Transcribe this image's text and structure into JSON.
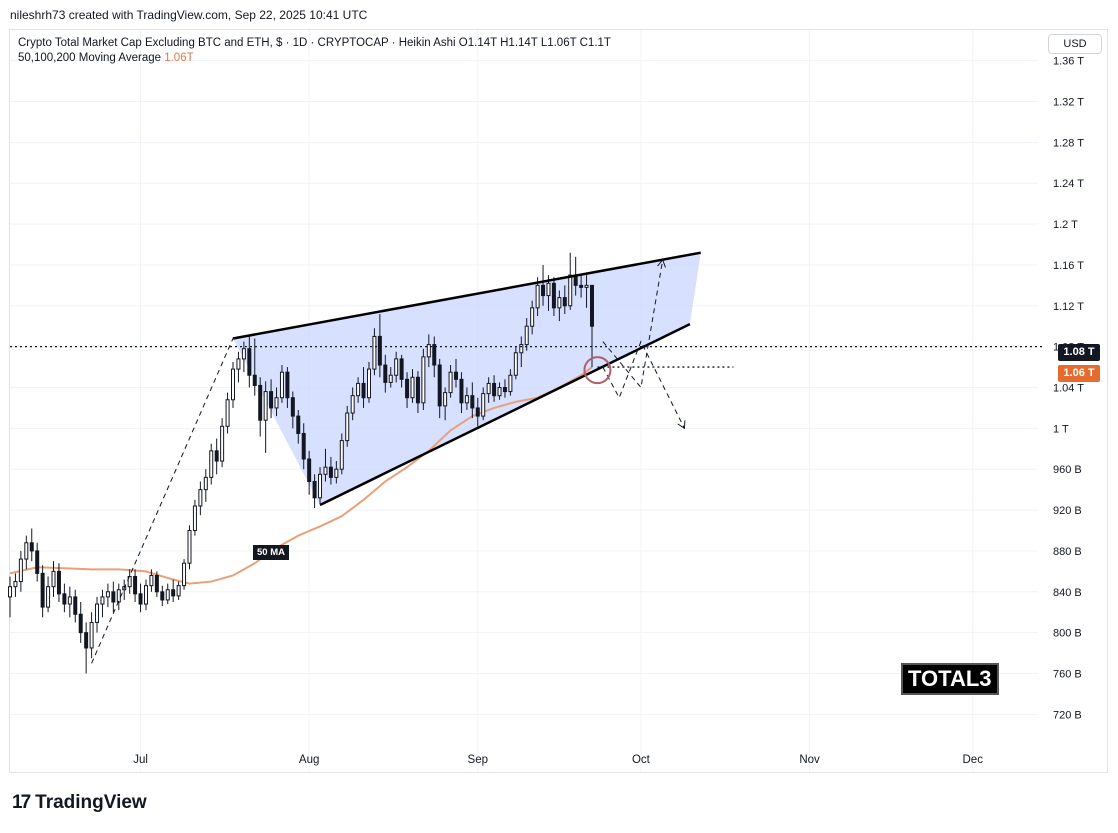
{
  "header": {
    "attribution": "nileshrh73 created with TradingView.com, Sep 22, 2025 10:41 UTC"
  },
  "legend": {
    "line1": "Crypto Total Market Cap Excluding BTC and ETH, $ · 1D · CRYPTOCAP · Heikin Ashi  O1.14T  H1.14T  L1.06T  C1.1T",
    "line2_label": "50,100,200 Moving Average",
    "line2_value": "1.06T"
  },
  "currency_button": "USD",
  "price_tags": {
    "last": "1.08 T",
    "ma": "1.06 T"
  },
  "ma_label": "50 MA",
  "ticker_label": "TOTAL3",
  "footer": {
    "brand": "TradingView",
    "mark": "17"
  },
  "colors": {
    "up": "#131722",
    "down": "#131722",
    "ma": "#e8a07a",
    "wedge_fill": "#c9d6ff",
    "price_line": "#131722"
  },
  "chart_data": {
    "type": "candlestick",
    "title": "Crypto Total Market Cap Excluding BTC and ETH",
    "y_unit": "USD",
    "ylim": [
      0.69,
      1.39
    ],
    "y_ticks": [
      "1.36 T",
      "1.32 T",
      "1.28 T",
      "1.24 T",
      "1.2 T",
      "1.16 T",
      "1.12 T",
      "1.08 T",
      "1.04 T",
      "1 T",
      "960 B",
      "920 B",
      "880 B",
      "840 B",
      "800 B",
      "760 B",
      "720 B"
    ],
    "y_tick_values": [
      1.36,
      1.32,
      1.28,
      1.24,
      1.2,
      1.16,
      1.12,
      1.08,
      1.04,
      1.0,
      0.96,
      0.92,
      0.88,
      0.84,
      0.8,
      0.76,
      0.72
    ],
    "x_ticks": [
      "Jul",
      "Aug",
      "Sep",
      "Oct",
      "Nov",
      "Dec"
    ],
    "x_tick_dates": [
      "2025-07-01",
      "2025-08-01",
      "2025-09-01",
      "2025-10-01",
      "2025-11-01",
      "2025-12-01"
    ],
    "x_range": [
      "2025-06-07",
      "2025-12-13"
    ],
    "last_price": 1.08,
    "ma50_last": 1.06,
    "candles": [
      {
        "d": "2025-06-07",
        "o": 0.835,
        "h": 0.855,
        "l": 0.815,
        "c": 0.845
      },
      {
        "d": "2025-06-08",
        "o": 0.845,
        "h": 0.858,
        "l": 0.835,
        "c": 0.85
      },
      {
        "d": "2025-06-09",
        "o": 0.85,
        "h": 0.88,
        "l": 0.84,
        "c": 0.872
      },
      {
        "d": "2025-06-10",
        "o": 0.872,
        "h": 0.895,
        "l": 0.862,
        "c": 0.888
      },
      {
        "d": "2025-06-11",
        "o": 0.888,
        "h": 0.902,
        "l": 0.87,
        "c": 0.88
      },
      {
        "d": "2025-06-12",
        "o": 0.88,
        "h": 0.888,
        "l": 0.85,
        "c": 0.858
      },
      {
        "d": "2025-06-13",
        "o": 0.858,
        "h": 0.866,
        "l": 0.815,
        "c": 0.825
      },
      {
        "d": "2025-06-14",
        "o": 0.825,
        "h": 0.855,
        "l": 0.82,
        "c": 0.845
      },
      {
        "d": "2025-06-15",
        "o": 0.845,
        "h": 0.87,
        "l": 0.835,
        "c": 0.86
      },
      {
        "d": "2025-06-16",
        "o": 0.86,
        "h": 0.868,
        "l": 0.83,
        "c": 0.838
      },
      {
        "d": "2025-06-17",
        "o": 0.838,
        "h": 0.848,
        "l": 0.82,
        "c": 0.828
      },
      {
        "d": "2025-06-18",
        "o": 0.828,
        "h": 0.845,
        "l": 0.815,
        "c": 0.835
      },
      {
        "d": "2025-06-19",
        "o": 0.835,
        "h": 0.842,
        "l": 0.81,
        "c": 0.818
      },
      {
        "d": "2025-06-20",
        "o": 0.818,
        "h": 0.83,
        "l": 0.79,
        "c": 0.8
      },
      {
        "d": "2025-06-21",
        "o": 0.8,
        "h": 0.81,
        "l": 0.76,
        "c": 0.785
      },
      {
        "d": "2025-06-22",
        "o": 0.785,
        "h": 0.82,
        "l": 0.775,
        "c": 0.81
      },
      {
        "d": "2025-06-23",
        "o": 0.81,
        "h": 0.835,
        "l": 0.8,
        "c": 0.828
      },
      {
        "d": "2025-06-24",
        "o": 0.828,
        "h": 0.842,
        "l": 0.815,
        "c": 0.835
      },
      {
        "d": "2025-06-25",
        "o": 0.835,
        "h": 0.848,
        "l": 0.825,
        "c": 0.84
      },
      {
        "d": "2025-06-26",
        "o": 0.84,
        "h": 0.85,
        "l": 0.82,
        "c": 0.83
      },
      {
        "d": "2025-06-27",
        "o": 0.83,
        "h": 0.848,
        "l": 0.822,
        "c": 0.842
      },
      {
        "d": "2025-06-28",
        "o": 0.842,
        "h": 0.852,
        "l": 0.832,
        "c": 0.845
      },
      {
        "d": "2025-06-29",
        "o": 0.845,
        "h": 0.862,
        "l": 0.838,
        "c": 0.855
      },
      {
        "d": "2025-06-30",
        "o": 0.855,
        "h": 0.862,
        "l": 0.83,
        "c": 0.838
      },
      {
        "d": "2025-07-01",
        "o": 0.838,
        "h": 0.848,
        "l": 0.82,
        "c": 0.828
      },
      {
        "d": "2025-07-02",
        "o": 0.828,
        "h": 0.852,
        "l": 0.822,
        "c": 0.846
      },
      {
        "d": "2025-07-03",
        "o": 0.846,
        "h": 0.862,
        "l": 0.84,
        "c": 0.856
      },
      {
        "d": "2025-07-04",
        "o": 0.856,
        "h": 0.86,
        "l": 0.835,
        "c": 0.84
      },
      {
        "d": "2025-07-05",
        "o": 0.84,
        "h": 0.846,
        "l": 0.826,
        "c": 0.832
      },
      {
        "d": "2025-07-06",
        "o": 0.832,
        "h": 0.848,
        "l": 0.828,
        "c": 0.842
      },
      {
        "d": "2025-07-07",
        "o": 0.842,
        "h": 0.852,
        "l": 0.83,
        "c": 0.836
      },
      {
        "d": "2025-07-08",
        "o": 0.836,
        "h": 0.85,
        "l": 0.832,
        "c": 0.846
      },
      {
        "d": "2025-07-09",
        "o": 0.846,
        "h": 0.872,
        "l": 0.842,
        "c": 0.868
      },
      {
        "d": "2025-07-10",
        "o": 0.868,
        "h": 0.905,
        "l": 0.862,
        "c": 0.9
      },
      {
        "d": "2025-07-11",
        "o": 0.9,
        "h": 0.93,
        "l": 0.895,
        "c": 0.924
      },
      {
        "d": "2025-07-12",
        "o": 0.924,
        "h": 0.948,
        "l": 0.915,
        "c": 0.94
      },
      {
        "d": "2025-07-13",
        "o": 0.94,
        "h": 0.96,
        "l": 0.928,
        "c": 0.952
      },
      {
        "d": "2025-07-14",
        "o": 0.952,
        "h": 0.985,
        "l": 0.945,
        "c": 0.978
      },
      {
        "d": "2025-07-15",
        "o": 0.978,
        "h": 0.99,
        "l": 0.955,
        "c": 0.968
      },
      {
        "d": "2025-07-16",
        "o": 0.968,
        "h": 1.01,
        "l": 0.962,
        "c": 1.002
      },
      {
        "d": "2025-07-17",
        "o": 1.002,
        "h": 1.035,
        "l": 0.995,
        "c": 1.028
      },
      {
        "d": "2025-07-18",
        "o": 1.028,
        "h": 1.065,
        "l": 1.02,
        "c": 1.058
      },
      {
        "d": "2025-07-19",
        "o": 1.058,
        "h": 1.075,
        "l": 1.045,
        "c": 1.068
      },
      {
        "d": "2025-07-20",
        "o": 1.068,
        "h": 1.085,
        "l": 1.055,
        "c": 1.078
      },
      {
        "d": "2025-07-21",
        "o": 1.078,
        "h": 1.09,
        "l": 1.04,
        "c": 1.052
      },
      {
        "d": "2025-07-22",
        "o": 1.052,
        "h": 1.088,
        "l": 1.032,
        "c": 1.042
      },
      {
        "d": "2025-07-23",
        "o": 1.042,
        "h": 1.05,
        "l": 0.992,
        "c": 1.008
      },
      {
        "d": "2025-07-24",
        "o": 1.008,
        "h": 1.046,
        "l": 0.976,
        "c": 1.036
      },
      {
        "d": "2025-07-25",
        "o": 1.036,
        "h": 1.048,
        "l": 1.01,
        "c": 1.02
      },
      {
        "d": "2025-07-26",
        "o": 1.02,
        "h": 1.04,
        "l": 1.012,
        "c": 1.03
      },
      {
        "d": "2025-07-27",
        "o": 1.03,
        "h": 1.062,
        "l": 1.025,
        "c": 1.055
      },
      {
        "d": "2025-07-28",
        "o": 1.055,
        "h": 1.06,
        "l": 1.02,
        "c": 1.03
      },
      {
        "d": "2025-07-29",
        "o": 1.03,
        "h": 1.036,
        "l": 1.0,
        "c": 1.012
      },
      {
        "d": "2025-07-30",
        "o": 1.012,
        "h": 1.018,
        "l": 0.985,
        "c": 0.995
      },
      {
        "d": "2025-07-31",
        "o": 0.995,
        "h": 1.005,
        "l": 0.96,
        "c": 0.97
      },
      {
        "d": "2025-08-01",
        "o": 0.97,
        "h": 0.978,
        "l": 0.935,
        "c": 0.948
      },
      {
        "d": "2025-08-02",
        "o": 0.948,
        "h": 0.955,
        "l": 0.922,
        "c": 0.932
      },
      {
        "d": "2025-08-03",
        "o": 0.932,
        "h": 0.962,
        "l": 0.926,
        "c": 0.955
      },
      {
        "d": "2025-08-04",
        "o": 0.955,
        "h": 0.98,
        "l": 0.948,
        "c": 0.962
      },
      {
        "d": "2025-08-05",
        "o": 0.962,
        "h": 0.972,
        "l": 0.945,
        "c": 0.952
      },
      {
        "d": "2025-08-06",
        "o": 0.952,
        "h": 0.968,
        "l": 0.946,
        "c": 0.96
      },
      {
        "d": "2025-08-07",
        "o": 0.96,
        "h": 0.995,
        "l": 0.955,
        "c": 0.988
      },
      {
        "d": "2025-08-08",
        "o": 0.988,
        "h": 1.022,
        "l": 0.982,
        "c": 1.015
      },
      {
        "d": "2025-08-09",
        "o": 1.015,
        "h": 1.04,
        "l": 1.008,
        "c": 1.032
      },
      {
        "d": "2025-08-10",
        "o": 1.032,
        "h": 1.05,
        "l": 1.025,
        "c": 1.044
      },
      {
        "d": "2025-08-11",
        "o": 1.044,
        "h": 1.06,
        "l": 1.02,
        "c": 1.03
      },
      {
        "d": "2025-08-12",
        "o": 1.03,
        "h": 1.065,
        "l": 1.025,
        "c": 1.058
      },
      {
        "d": "2025-08-13",
        "o": 1.058,
        "h": 1.098,
        "l": 1.052,
        "c": 1.09
      },
      {
        "d": "2025-08-14",
        "o": 1.09,
        "h": 1.112,
        "l": 1.05,
        "c": 1.062
      },
      {
        "d": "2025-08-15",
        "o": 1.062,
        "h": 1.072,
        "l": 1.035,
        "c": 1.045
      },
      {
        "d": "2025-08-16",
        "o": 1.045,
        "h": 1.06,
        "l": 1.04,
        "c": 1.052
      },
      {
        "d": "2025-08-17",
        "o": 1.052,
        "h": 1.075,
        "l": 1.045,
        "c": 1.068
      },
      {
        "d": "2025-08-18",
        "o": 1.068,
        "h": 1.072,
        "l": 1.04,
        "c": 1.048
      },
      {
        "d": "2025-08-19",
        "o": 1.048,
        "h": 1.055,
        "l": 1.02,
        "c": 1.03
      },
      {
        "d": "2025-08-20",
        "o": 1.03,
        "h": 1.058,
        "l": 1.025,
        "c": 1.05
      },
      {
        "d": "2025-08-21",
        "o": 1.05,
        "h": 1.056,
        "l": 1.015,
        "c": 1.025
      },
      {
        "d": "2025-08-22",
        "o": 1.025,
        "h": 1.078,
        "l": 1.018,
        "c": 1.07
      },
      {
        "d": "2025-08-23",
        "o": 1.07,
        "h": 1.092,
        "l": 1.06,
        "c": 1.082
      },
      {
        "d": "2025-08-24",
        "o": 1.082,
        "h": 1.09,
        "l": 1.05,
        "c": 1.062
      },
      {
        "d": "2025-08-25",
        "o": 1.062,
        "h": 1.068,
        "l": 1.01,
        "c": 1.022
      },
      {
        "d": "2025-08-26",
        "o": 1.022,
        "h": 1.04,
        "l": 1.008,
        "c": 1.035
      },
      {
        "d": "2025-08-27",
        "o": 1.035,
        "h": 1.062,
        "l": 1.03,
        "c": 1.055
      },
      {
        "d": "2025-08-28",
        "o": 1.055,
        "h": 1.068,
        "l": 1.04,
        "c": 1.048
      },
      {
        "d": "2025-08-29",
        "o": 1.048,
        "h": 1.055,
        "l": 1.015,
        "c": 1.025
      },
      {
        "d": "2025-08-30",
        "o": 1.025,
        "h": 1.04,
        "l": 1.018,
        "c": 1.032
      },
      {
        "d": "2025-08-31",
        "o": 1.032,
        "h": 1.045,
        "l": 1.01,
        "c": 1.02
      },
      {
        "d": "2025-09-01",
        "o": 1.02,
        "h": 1.03,
        "l": 1.002,
        "c": 1.012
      },
      {
        "d": "2025-09-02",
        "o": 1.012,
        "h": 1.04,
        "l": 1.008,
        "c": 1.034
      },
      {
        "d": "2025-09-03",
        "o": 1.034,
        "h": 1.05,
        "l": 1.025,
        "c": 1.044
      },
      {
        "d": "2025-09-04",
        "o": 1.044,
        "h": 1.052,
        "l": 1.026,
        "c": 1.032
      },
      {
        "d": "2025-09-05",
        "o": 1.032,
        "h": 1.045,
        "l": 1.028,
        "c": 1.04
      },
      {
        "d": "2025-09-06",
        "o": 1.04,
        "h": 1.048,
        "l": 1.03,
        "c": 1.036
      },
      {
        "d": "2025-09-07",
        "o": 1.036,
        "h": 1.058,
        "l": 1.032,
        "c": 1.052
      },
      {
        "d": "2025-09-08",
        "o": 1.052,
        "h": 1.08,
        "l": 1.048,
        "c": 1.074
      },
      {
        "d": "2025-09-09",
        "o": 1.074,
        "h": 1.09,
        "l": 1.06,
        "c": 1.082
      },
      {
        "d": "2025-09-10",
        "o": 1.082,
        "h": 1.108,
        "l": 1.076,
        "c": 1.1
      },
      {
        "d": "2025-09-11",
        "o": 1.1,
        "h": 1.125,
        "l": 1.092,
        "c": 1.118
      },
      {
        "d": "2025-09-12",
        "o": 1.118,
        "h": 1.148,
        "l": 1.11,
        "c": 1.14
      },
      {
        "d": "2025-09-13",
        "o": 1.14,
        "h": 1.16,
        "l": 1.12,
        "c": 1.13
      },
      {
        "d": "2025-09-14",
        "o": 1.13,
        "h": 1.15,
        "l": 1.115,
        "c": 1.142
      },
      {
        "d": "2025-09-15",
        "o": 1.142,
        "h": 1.148,
        "l": 1.11,
        "c": 1.118
      },
      {
        "d": "2025-09-16",
        "o": 1.118,
        "h": 1.135,
        "l": 1.105,
        "c": 1.128
      },
      {
        "d": "2025-09-17",
        "o": 1.128,
        "h": 1.14,
        "l": 1.112,
        "c": 1.12
      },
      {
        "d": "2025-09-18",
        "o": 1.12,
        "h": 1.172,
        "l": 1.116,
        "c": 1.15
      },
      {
        "d": "2025-09-19",
        "o": 1.15,
        "h": 1.168,
        "l": 1.13,
        "c": 1.14
      },
      {
        "d": "2025-09-20",
        "o": 1.14,
        "h": 1.15,
        "l": 1.128,
        "c": 1.138
      },
      {
        "d": "2025-09-21",
        "o": 1.138,
        "h": 1.15,
        "l": 1.118,
        "c": 1.14
      },
      {
        "d": "2025-09-22",
        "o": 1.14,
        "h": 1.14,
        "l": 1.06,
        "c": 1.1
      }
    ],
    "ma50": [
      {
        "d": "2025-06-07",
        "v": 0.858
      },
      {
        "d": "2025-06-12",
        "v": 0.864
      },
      {
        "d": "2025-06-17",
        "v": 0.863
      },
      {
        "d": "2025-06-22",
        "v": 0.862
      },
      {
        "d": "2025-06-27",
        "v": 0.862
      },
      {
        "d": "2025-07-02",
        "v": 0.86
      },
      {
        "d": "2025-07-07",
        "v": 0.852
      },
      {
        "d": "2025-07-10",
        "v": 0.848
      },
      {
        "d": "2025-07-14",
        "v": 0.85
      },
      {
        "d": "2025-07-18",
        "v": 0.856
      },
      {
        "d": "2025-07-22",
        "v": 0.868
      },
      {
        "d": "2025-07-26",
        "v": 0.883
      },
      {
        "d": "2025-07-30",
        "v": 0.895
      },
      {
        "d": "2025-08-03",
        "v": 0.904
      },
      {
        "d": "2025-08-07",
        "v": 0.914
      },
      {
        "d": "2025-08-11",
        "v": 0.93
      },
      {
        "d": "2025-08-15",
        "v": 0.948
      },
      {
        "d": "2025-08-19",
        "v": 0.962
      },
      {
        "d": "2025-08-23",
        "v": 0.978
      },
      {
        "d": "2025-08-27",
        "v": 0.998
      },
      {
        "d": "2025-08-31",
        "v": 1.012
      },
      {
        "d": "2025-09-04",
        "v": 1.02
      },
      {
        "d": "2025-09-08",
        "v": 1.026
      },
      {
        "d": "2025-09-12",
        "v": 1.03
      },
      {
        "d": "2025-09-16",
        "v": 1.04
      },
      {
        "d": "2025-09-20",
        "v": 1.052
      },
      {
        "d": "2025-09-22",
        "v": 1.06
      }
    ],
    "annotations": {
      "rising_wedge": {
        "upper": [
          {
            "d": "2025-07-18",
            "v": 1.088
          },
          {
            "d": "2025-10-12",
            "v": 1.172
          }
        ],
        "lower": [
          {
            "d": "2025-08-03",
            "v": 0.925
          },
          {
            "d": "2025-10-10",
            "v": 1.102
          }
        ],
        "fill_start": {
          "d": "2025-07-18",
          "v": 1.088
        },
        "fill_pivot": {
          "d": "2025-08-03",
          "v": 0.925
        }
      },
      "breakout_circle": {
        "d": "2025-09-23",
        "v": 1.057
      },
      "prior_trend": {
        "from": {
          "d": "2025-06-22",
          "v": 0.77
        },
        "to": {
          "d": "2025-07-18",
          "v": 1.088
        }
      },
      "projection_up": [
        {
          "d": "2025-09-24",
          "v": 1.085
        },
        {
          "d": "2025-10-01",
          "v": 1.04
        },
        {
          "d": "2025-10-05",
          "v": 1.165
        }
      ],
      "projection_down": [
        {
          "d": "2025-09-24",
          "v": 1.06
        },
        {
          "d": "2025-09-27",
          "v": 1.03
        },
        {
          "d": "2025-10-01",
          "v": 1.085
        },
        {
          "d": "2025-10-09",
          "v": 1.0
        }
      ],
      "ma_dotted_level": 1.06
    }
  }
}
